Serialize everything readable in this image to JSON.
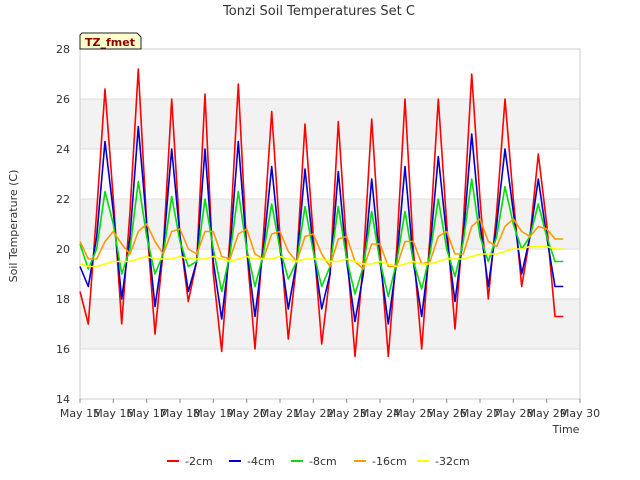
{
  "chart_data": {
    "type": "line",
    "title": "Tonzi Soil Temperatures Set C",
    "xlabel": "Time",
    "ylabel": "Soil Temperature (C)",
    "site_badge": "TZ_fmet",
    "ylim": [
      14,
      28
    ],
    "yticks": [
      "14",
      "16",
      "18",
      "20",
      "22",
      "24",
      "26",
      "28"
    ],
    "xlim": [
      15,
      30
    ],
    "xticks": [
      "May 15",
      "May 16",
      "May 17",
      "May 18",
      "May 19",
      "May 20",
      "May 21",
      "May 22",
      "May 23",
      "May 24",
      "May 25",
      "May 26",
      "May 27",
      "May 28",
      "May 29",
      "May 30"
    ],
    "grid": true,
    "legend_position": "bottom",
    "x_days": [
      15.0,
      15.25,
      15.5,
      15.75,
      16.0,
      16.25,
      16.5,
      16.75,
      17.0,
      17.25,
      17.5,
      17.75,
      18.0,
      18.25,
      18.5,
      18.75,
      19.0,
      19.25,
      19.5,
      19.75,
      20.0,
      20.25,
      20.5,
      20.75,
      21.0,
      21.25,
      21.5,
      21.75,
      22.0,
      22.25,
      22.5,
      22.75,
      23.0,
      23.25,
      23.5,
      23.75,
      24.0,
      24.25,
      24.5,
      24.75,
      25.0,
      25.25,
      25.5,
      25.75,
      26.0,
      26.25,
      26.5,
      26.75,
      27.0,
      27.25,
      27.5,
      27.75,
      28.0,
      28.25,
      28.5,
      28.75,
      29.0,
      29.25,
      29.5
    ],
    "series": [
      {
        "name": "-2cm",
        "color": "#ff0000",
        "values": [
          18.3,
          17.0,
          21.5,
          26.4,
          22.0,
          17.0,
          21.5,
          27.2,
          21.0,
          16.6,
          20.0,
          26.0,
          20.5,
          17.9,
          19.5,
          26.2,
          19.0,
          15.9,
          20.5,
          26.6,
          20.0,
          16.0,
          20.5,
          25.5,
          20.5,
          16.4,
          19.5,
          25.0,
          20.5,
          16.2,
          19.0,
          25.1,
          20.0,
          15.7,
          19.5,
          25.2,
          20.0,
          15.7,
          20.0,
          26.0,
          20.0,
          16.0,
          20.5,
          26.0,
          21.0,
          16.8,
          21.0,
          27.0,
          22.0,
          18.0,
          21.5,
          26.0,
          22.0,
          18.5,
          20.5,
          23.8,
          21.0,
          17.3,
          17.3
        ]
      },
      {
        "name": "-4cm",
        "color": "#0000cc",
        "values": [
          19.3,
          18.5,
          20.5,
          24.3,
          21.5,
          18.0,
          20.5,
          24.9,
          21.0,
          17.7,
          20.0,
          24.0,
          20.5,
          18.3,
          19.5,
          24.0,
          19.5,
          17.2,
          20.0,
          24.3,
          20.0,
          17.3,
          20.0,
          23.3,
          20.0,
          17.6,
          19.5,
          23.2,
          20.0,
          17.6,
          19.0,
          23.1,
          19.5,
          17.1,
          19.0,
          22.8,
          19.5,
          17.0,
          19.5,
          23.3,
          19.5,
          17.3,
          20.0,
          23.7,
          20.5,
          17.9,
          20.5,
          24.6,
          21.0,
          18.5,
          21.0,
          24.0,
          21.5,
          19.0,
          20.5,
          22.8,
          20.5,
          18.5,
          18.5
        ]
      },
      {
        "name": "-8cm",
        "color": "#00dd00",
        "values": [
          20.2,
          19.2,
          20.0,
          22.3,
          21.0,
          19.0,
          20.0,
          22.7,
          20.5,
          19.0,
          19.8,
          22.1,
          20.3,
          19.3,
          19.5,
          22.0,
          20.0,
          18.3,
          19.8,
          22.3,
          20.0,
          18.5,
          19.8,
          21.8,
          20.0,
          18.8,
          19.5,
          21.7,
          19.9,
          18.5,
          19.3,
          21.7,
          19.6,
          18.2,
          19.3,
          21.5,
          19.5,
          18.1,
          19.5,
          21.5,
          19.5,
          18.4,
          19.8,
          22.0,
          20.0,
          18.9,
          20.3,
          22.8,
          20.5,
          19.5,
          20.5,
          22.5,
          21.0,
          20.0,
          20.5,
          21.8,
          20.5,
          19.5,
          19.5
        ]
      },
      {
        "name": "-16cm",
        "color": "#ff9900",
        "values": [
          20.3,
          19.6,
          19.6,
          20.3,
          20.7,
          20.2,
          19.8,
          20.7,
          21.0,
          20.3,
          19.8,
          20.7,
          20.8,
          20.0,
          19.8,
          20.7,
          20.7,
          19.7,
          19.6,
          20.6,
          20.8,
          19.8,
          19.6,
          20.6,
          20.7,
          19.9,
          19.5,
          20.5,
          20.6,
          19.8,
          19.3,
          20.4,
          20.5,
          19.5,
          19.2,
          20.2,
          20.2,
          19.3,
          19.3,
          20.3,
          20.3,
          19.4,
          19.5,
          20.5,
          20.7,
          19.8,
          19.8,
          20.9,
          21.2,
          20.3,
          20.1,
          20.9,
          21.2,
          20.7,
          20.5,
          20.9,
          20.8,
          20.4,
          20.4
        ]
      },
      {
        "name": "-32cm",
        "color": "#ffff00",
        "values": [
          19.4,
          19.3,
          19.3,
          19.4,
          19.5,
          19.5,
          19.5,
          19.6,
          19.7,
          19.6,
          19.6,
          19.6,
          19.7,
          19.6,
          19.6,
          19.6,
          19.7,
          19.6,
          19.5,
          19.6,
          19.7,
          19.6,
          19.6,
          19.6,
          19.7,
          19.6,
          19.5,
          19.6,
          19.6,
          19.6,
          19.5,
          19.5,
          19.6,
          19.5,
          19.4,
          19.4,
          19.5,
          19.4,
          19.3,
          19.4,
          19.5,
          19.4,
          19.4,
          19.5,
          19.6,
          19.6,
          19.6,
          19.7,
          19.8,
          19.8,
          19.8,
          19.9,
          20.0,
          20.0,
          20.1,
          20.1,
          20.1,
          20.0,
          20.0
        ]
      }
    ]
  }
}
